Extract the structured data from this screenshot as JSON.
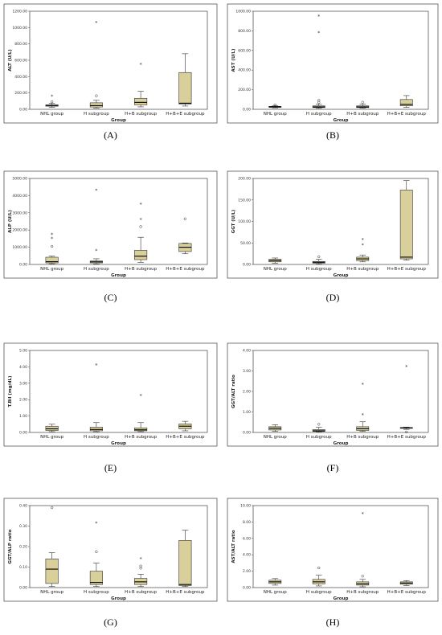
{
  "figure": {
    "colors": {
      "box_fill": "#d8cf9a",
      "box_stroke": "#333333",
      "median": "#000000",
      "outlier": "#333333"
    }
  },
  "chart_data": [
    {
      "type": "boxplot",
      "panel_label": "(A)",
      "ylabel": "ALT (U/L)",
      "xlabel": "Group",
      "ylim": [
        0,
        1200
      ],
      "yticks": [
        0,
        200,
        400,
        600,
        800,
        1000,
        1200
      ],
      "ytick_labels": [
        "0.00",
        "200.00",
        "400.00",
        "600.00",
        "800.00",
        "1000.00",
        "1200.00"
      ],
      "categories": [
        "NHL group",
        "H subgroup",
        "H+B subgroup",
        "H+B+E subgroup"
      ],
      "boxes": [
        {
          "min": 25,
          "q1": 38,
          "median": 47,
          "q3": 55,
          "max": 75,
          "outliers": [
            {
              "v": 92,
              "m": "o"
            },
            {
              "v": 160,
              "m": "*"
            }
          ]
        },
        {
          "min": 15,
          "q1": 28,
          "median": 45,
          "q3": 80,
          "max": 110,
          "outliers": [
            {
              "v": 165,
              "m": "o"
            },
            {
              "v": 1060,
              "m": "*"
            }
          ]
        },
        {
          "min": 30,
          "q1": 55,
          "median": 85,
          "q3": 135,
          "max": 220,
          "outliers": [
            {
              "v": 550,
              "m": "*"
            }
          ]
        },
        {
          "min": 40,
          "q1": 65,
          "median": 75,
          "q3": 450,
          "max": 680,
          "outliers": []
        }
      ]
    },
    {
      "type": "boxplot",
      "panel_label": "(B)",
      "ylabel": "AST (U/L)",
      "xlabel": "Group",
      "ylim": [
        0,
        1000
      ],
      "yticks": [
        0,
        200,
        400,
        600,
        800,
        1000
      ],
      "ytick_labels": [
        "0.00",
        "200.00",
        "400.00",
        "600.00",
        "800.00",
        "1000.00"
      ],
      "categories": [
        "NHL group",
        "H subgroup",
        "H+B subgroup",
        "H+B+E subgroup"
      ],
      "boxes": [
        {
          "min": 15,
          "q1": 20,
          "median": 25,
          "q3": 30,
          "max": 38,
          "outliers": [
            {
              "v": 45,
              "m": "o"
            }
          ]
        },
        {
          "min": 10,
          "q1": 18,
          "median": 25,
          "q3": 35,
          "max": 55,
          "outliers": [
            {
              "v": 72,
              "m": "o"
            },
            {
              "v": 92,
              "m": "o"
            },
            {
              "v": 780,
              "m": "*"
            },
            {
              "v": 950,
              "m": "*"
            }
          ]
        },
        {
          "min": 12,
          "q1": 18,
          "median": 25,
          "q3": 35,
          "max": 52,
          "outliers": [
            {
              "v": 72,
              "m": "o"
            }
          ]
        },
        {
          "min": 20,
          "q1": 35,
          "median": 50,
          "q3": 100,
          "max": 140,
          "outliers": []
        }
      ]
    },
    {
      "type": "boxplot",
      "panel_label": "(C)",
      "ylabel": "ALP (U/L)",
      "xlabel": "Group",
      "ylim": [
        0,
        5000
      ],
      "yticks": [
        0,
        1000,
        2000,
        3000,
        4000,
        5000
      ],
      "ytick_labels": [
        "0.00",
        "1000.00",
        "2000.00",
        "3000.00",
        "4000.00",
        "5000.00"
      ],
      "categories": [
        "NHL group",
        "H subgroup",
        "H+B subgroup",
        "H+B+E subgroup"
      ],
      "boxes": [
        {
          "min": 40,
          "q1": 90,
          "median": 160,
          "q3": 420,
          "max": 480,
          "outliers": [
            {
              "v": 1050,
              "m": "o"
            },
            {
              "v": 1500,
              "m": "*"
            },
            {
              "v": 1750,
              "m": "*"
            }
          ]
        },
        {
          "min": 30,
          "q1": 90,
          "median": 150,
          "q3": 200,
          "max": 330,
          "outliers": [
            {
              "v": 800,
              "m": "*"
            },
            {
              "v": 4300,
              "m": "*"
            }
          ]
        },
        {
          "min": 120,
          "q1": 280,
          "median": 480,
          "q3": 820,
          "max": 1580,
          "outliers": [
            {
              "v": 2200,
              "m": "o"
            },
            {
              "v": 2600,
              "m": "*"
            },
            {
              "v": 3500,
              "m": "*"
            }
          ]
        },
        {
          "min": 620,
          "q1": 750,
          "median": 1000,
          "q3": 1220,
          "max": 1250,
          "outliers": [
            {
              "v": 2650,
              "m": "o"
            }
          ]
        }
      ]
    },
    {
      "type": "boxplot",
      "panel_label": "(D)",
      "ylabel": "GGT (U/L)",
      "xlabel": "Group",
      "ylim": [
        0,
        200
      ],
      "yticks": [
        0,
        50,
        100,
        150,
        200
      ],
      "ytick_labels": [
        "0.00",
        "50.00",
        "100.00",
        "150.00",
        "200.00"
      ],
      "categories": [
        "NHL group",
        "H subgroup",
        "H+B subgroup",
        "H+B+E subgroup"
      ],
      "boxes": [
        {
          "min": 3,
          "q1": 6,
          "median": 9,
          "q3": 12,
          "max": 15,
          "outliers": []
        },
        {
          "min": 1,
          "q1": 3,
          "median": 5,
          "q3": 7,
          "max": 12,
          "outliers": [
            {
              "v": 18,
              "m": "o"
            }
          ]
        },
        {
          "min": 6,
          "q1": 9,
          "median": 13,
          "q3": 17,
          "max": 22,
          "outliers": [
            {
              "v": 45,
              "m": "*"
            },
            {
              "v": 57,
              "m": "*"
            }
          ]
        },
        {
          "min": 10,
          "q1": 13,
          "median": 17,
          "q3": 173,
          "max": 195,
          "outliers": []
        }
      ]
    },
    {
      "type": "boxplot",
      "panel_label": "(E)",
      "ylabel": "T.Bil (mg/dL)",
      "xlabel": "Group",
      "ylim": [
        0,
        5
      ],
      "yticks": [
        0,
        1,
        2,
        3,
        4,
        5
      ],
      "ytick_labels": [
        "0.00",
        "1.00",
        "2.00",
        "3.00",
        "4.00",
        "5.00"
      ],
      "categories": [
        "NHL group",
        "H subgroup",
        "H+B subgroup",
        "H+B+E subgroup"
      ],
      "boxes": [
        {
          "min": 0.05,
          "q1": 0.12,
          "median": 0.22,
          "q3": 0.38,
          "max": 0.5,
          "outliers": []
        },
        {
          "min": 0.05,
          "q1": 0.1,
          "median": 0.18,
          "q3": 0.32,
          "max": 0.6,
          "outliers": [
            {
              "v": 4.1,
              "m": "*"
            }
          ]
        },
        {
          "min": 0.05,
          "q1": 0.1,
          "median": 0.16,
          "q3": 0.28,
          "max": 0.6,
          "outliers": [
            {
              "v": 2.25,
              "m": "*"
            }
          ]
        },
        {
          "min": 0.1,
          "q1": 0.22,
          "median": 0.38,
          "q3": 0.52,
          "max": 0.68,
          "outliers": []
        }
      ]
    },
    {
      "type": "boxplot",
      "panel_label": "(F)",
      "ylabel": "GGT/ALT ratio",
      "xlabel": "Group",
      "ylim": [
        0,
        4
      ],
      "yticks": [
        0,
        1,
        2,
        3,
        4
      ],
      "ytick_labels": [
        "0.00",
        "1.00",
        "2.00",
        "3.00",
        "4.00"
      ],
      "categories": [
        "NHL group",
        "H subgroup",
        "H+B subgroup",
        "H+B+E subgroup"
      ],
      "boxes": [
        {
          "min": 0.05,
          "q1": 0.12,
          "median": 0.2,
          "q3": 0.28,
          "max": 0.38,
          "outliers": []
        },
        {
          "min": 0.02,
          "q1": 0.05,
          "median": 0.08,
          "q3": 0.14,
          "max": 0.25,
          "outliers": [
            {
              "v": 0.4,
              "m": "o"
            }
          ]
        },
        {
          "min": 0.05,
          "q1": 0.1,
          "median": 0.18,
          "q3": 0.28,
          "max": 0.52,
          "outliers": [
            {
              "v": 0.85,
              "m": "*"
            },
            {
              "v": 2.35,
              "m": "*"
            }
          ]
        },
        {
          "min": 0.15,
          "q1": 0.2,
          "median": 0.22,
          "q3": 0.24,
          "max": 0.26,
          "outliers": [
            {
              "v": 0.02,
              "m": "o"
            },
            {
              "v": 3.2,
              "m": "*"
            }
          ]
        }
      ]
    },
    {
      "type": "boxplot",
      "panel_label": "(G)",
      "ylabel": "GGT/ALP ratio",
      "xlabel": "Group",
      "ylim": [
        0,
        0.4
      ],
      "yticks": [
        0,
        0.1,
        0.2,
        0.3,
        0.4
      ],
      "ytick_labels": [
        "0.00",
        "0.10",
        "0.20",
        "0.30",
        "0.40"
      ],
      "categories": [
        "NHL group",
        "H subgroup",
        "H+B subgroup",
        "H+B+E subgroup"
      ],
      "boxes": [
        {
          "min": 0.005,
          "q1": 0.02,
          "median": 0.09,
          "q3": 0.14,
          "max": 0.17,
          "outliers": [
            {
              "v": 0.39,
              "m": "o"
            }
          ]
        },
        {
          "min": 0.005,
          "q1": 0.015,
          "median": 0.025,
          "q3": 0.08,
          "max": 0.12,
          "outliers": [
            {
              "v": 0.175,
              "m": "o"
            },
            {
              "v": 0.315,
              "m": "*"
            }
          ]
        },
        {
          "min": 0.005,
          "q1": 0.015,
          "median": 0.028,
          "q3": 0.045,
          "max": 0.065,
          "outliers": [
            {
              "v": 0.095,
              "m": "o"
            },
            {
              "v": 0.105,
              "m": "o"
            },
            {
              "v": 0.14,
              "m": "*"
            }
          ]
        },
        {
          "min": 0.005,
          "q1": 0.01,
          "median": 0.015,
          "q3": 0.23,
          "max": 0.28,
          "outliers": []
        }
      ]
    },
    {
      "type": "boxplot",
      "panel_label": "(H)",
      "ylabel": "AST/ALT ratio",
      "xlabel": "Group",
      "ylim": [
        0,
        10
      ],
      "yticks": [
        0,
        2,
        4,
        6,
        8,
        10
      ],
      "ytick_labels": [
        "0.00",
        "2.00",
        "4.00",
        "6.00",
        "8.00",
        "10.00"
      ],
      "categories": [
        "NHL group",
        "H subgroup",
        "H+B subgroup",
        "H+B+E subgroup"
      ],
      "boxes": [
        {
          "min": 0.3,
          "q1": 0.5,
          "median": 0.7,
          "q3": 0.9,
          "max": 1.1,
          "outliers": []
        },
        {
          "min": 0.2,
          "q1": 0.45,
          "median": 0.7,
          "q3": 1.0,
          "max": 1.5,
          "outliers": [
            {
              "v": 2.4,
              "m": "o"
            }
          ]
        },
        {
          "min": 0.1,
          "q1": 0.3,
          "median": 0.45,
          "q3": 0.7,
          "max": 1.0,
          "outliers": [
            {
              "v": 1.4,
              "m": "o"
            },
            {
              "v": 9.0,
              "m": "*"
            }
          ]
        },
        {
          "min": 0.25,
          "q1": 0.4,
          "median": 0.55,
          "q3": 0.7,
          "max": 0.85,
          "outliers": []
        }
      ]
    }
  ]
}
